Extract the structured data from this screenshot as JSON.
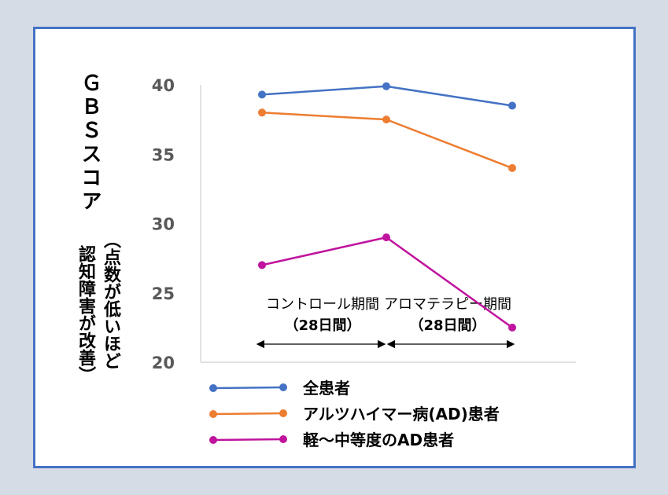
{
  "chart_data": {
    "type": "line",
    "ylabel": "ＧＢＳスコア",
    "ylabel_note_line1": "（点数が低いほど",
    "ylabel_note_line2": "認知障害が改善）",
    "ylim": [
      20,
      40
    ],
    "yticks": [
      "20",
      "25",
      "30",
      "35",
      "40"
    ],
    "x": [
      1,
      2,
      3
    ],
    "periods": [
      {
        "label": "コントロール期間",
        "days": "（28日間）"
      },
      {
        "label": "アロマテラピー期間",
        "days": "（28日間）"
      }
    ],
    "series": [
      {
        "name": "全患者",
        "color": "#4472c4",
        "values": [
          39.3,
          39.9,
          38.5
        ]
      },
      {
        "name": "アルツハイマー病(AD)患者",
        "color": "#ed7d31",
        "values": [
          38.0,
          37.5,
          34.0
        ]
      },
      {
        "name": "軽～中等度のAD患者",
        "color": "#c0139e",
        "values": [
          27.0,
          29.0,
          22.5
        ]
      }
    ],
    "legend_position": "bottom"
  }
}
